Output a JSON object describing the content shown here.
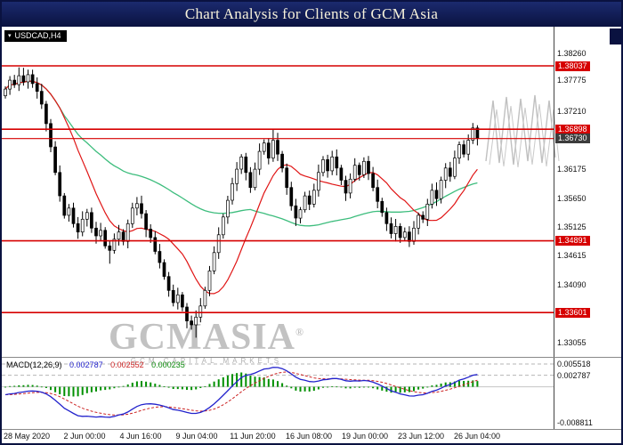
{
  "title_bar": {
    "title": "Chart Analysis for Clients of GCM Asia"
  },
  "chart": {
    "symbol_label": "USDCAD,H4",
    "watermark": {
      "brand": "GCMASIA",
      "reg": "®",
      "subtitle": "GCM CAPITAL MARKETS"
    }
  },
  "colors": {
    "level_red": "#d60000",
    "label_red_bg": "#d60000",
    "current_label_bg": "#3c3c3c",
    "ma_fast": "#e01515",
    "ma_slow": "#3dbd7d",
    "macd_line": "#2222cc",
    "macd_signal": "#cc2222",
    "macd_hist": "#009000",
    "candle_up": "#ffffff",
    "candle_down": "#000000",
    "candle_stroke": "#000000"
  },
  "chart_data": {
    "type": "candlestick",
    "symbol": "USDCAD",
    "timeframe": "H4",
    "title": "Chart Analysis for Clients of GCM Asia",
    "x_axis_labels": [
      "28 May 2020",
      "2 Jun 00:00",
      "4 Jun 16:00",
      "9 Jun 04:00",
      "11 Jun 20:00",
      "16 Jun 08:00",
      "19 Jun 00:00",
      "23 Jun 12:00",
      "26 Jun 04:00"
    ],
    "y_axis": {
      "range": [
        1.3282,
        1.3871
      ],
      "ticks": [
        "1.38260",
        "1.37775",
        "1.37210",
        "1.36175",
        "1.35650",
        "1.35125",
        "1.34615",
        "1.34090",
        "1.33055"
      ]
    },
    "price_lines": [
      {
        "value": 1.38037,
        "label": "1.38037"
      },
      {
        "value": 1.36898,
        "label": "1.36898"
      },
      {
        "value": 1.34891,
        "label": "1.34891"
      },
      {
        "value": 1.33601,
        "label": "1.33601"
      }
    ],
    "current_price": {
      "value": 1.3673,
      "label": "1.36730"
    },
    "open_first": 1.375,
    "closes": [
      1.3762,
      1.3778,
      1.377,
      1.3786,
      1.3775,
      1.3788,
      1.3772,
      1.3758,
      1.3735,
      1.37,
      1.3658,
      1.3612,
      1.357,
      1.3535,
      1.3548,
      1.352,
      1.3505,
      1.3528,
      1.354,
      1.3512,
      1.3498,
      1.3508,
      1.348,
      1.3472,
      1.3492,
      1.3505,
      1.3488,
      1.352,
      1.3548,
      1.3556,
      1.3538,
      1.351,
      1.3495,
      1.347,
      1.345,
      1.3425,
      1.34,
      1.3378,
      1.3392,
      1.337,
      1.3345,
      1.3338,
      1.3352,
      1.3372,
      1.34,
      1.3435,
      1.3468,
      1.35,
      1.3532,
      1.3562,
      1.3592,
      1.3618,
      1.364,
      1.3612,
      1.3585,
      1.3618,
      1.365,
      1.3665,
      1.3638,
      1.367,
      1.3645,
      1.362,
      1.3585,
      1.3552,
      1.353,
      1.3545,
      1.357,
      1.3555,
      1.358,
      1.3612,
      1.3635,
      1.3615,
      1.364,
      1.362,
      1.3598,
      1.3575,
      1.36,
      1.3625,
      1.3608,
      1.3632,
      1.361,
      1.3585,
      1.356,
      1.354,
      1.352,
      1.3502,
      1.3515,
      1.3495,
      1.3505,
      1.3488,
      1.3512,
      1.3535,
      1.3528,
      1.3555,
      1.358,
      1.3565,
      1.3598,
      1.362,
      1.3605,
      1.3638,
      1.3662,
      1.3645,
      1.367,
      1.3692,
      1.3673
    ],
    "wick_overrides": {
      "3": {
        "high": 1.3801
      },
      "5": {
        "high": 1.3797
      },
      "23": {
        "low": 1.3448
      },
      "42": {
        "low": 1.3315
      },
      "59": {
        "high": 1.3689
      },
      "89": {
        "low": 1.3478
      },
      "103": {
        "high": 1.3701
      }
    },
    "moving_averages": [
      {
        "name": "fast",
        "period": 13
      },
      {
        "name": "slow",
        "period": 55
      }
    ],
    "macd": {
      "label": "MACD(12,26,9)",
      "params": {
        "fast": 12,
        "slow": 26,
        "signal": 9
      },
      "values": [
        "0.002787",
        "0.002552",
        "0.000235"
      ],
      "axis_labels": [
        "0.005518",
        "0.002787",
        "-0.008811"
      ],
      "levels": [
        0.005518,
        0.002787
      ],
      "range": [
        -0.01,
        0.0068
      ]
    }
  }
}
